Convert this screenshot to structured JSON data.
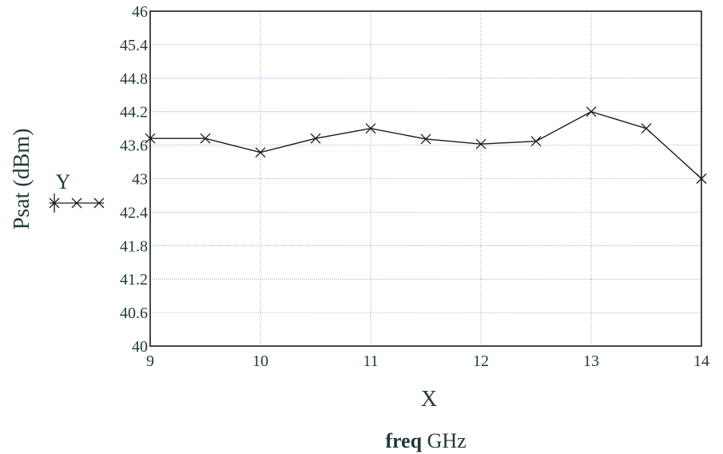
{
  "chart_data": {
    "type": "line",
    "xlabel": "X",
    "ylabel": "Psat (dBm)",
    "x_unit_label_bold": "freq",
    "x_unit_label_rest": "GHz",
    "legend_label": "Y",
    "legend_placement": "left",
    "grid": true,
    "xlim": [
      9,
      14
    ],
    "ylim": [
      40,
      46
    ],
    "x_ticks": [
      "9",
      "10",
      "11",
      "12",
      "13",
      "14"
    ],
    "y_ticks": [
      "40",
      "40.6",
      "41.2",
      "41.8",
      "42.4",
      "43",
      "43.6",
      "44.2",
      "44.8",
      "45.4",
      "46"
    ],
    "x_tick_values": [
      9,
      10,
      11,
      12,
      13,
      14
    ],
    "y_tick_values": [
      40,
      40.6,
      41.2,
      41.8,
      42.4,
      43,
      43.6,
      44.2,
      44.8,
      45.4,
      46
    ],
    "series": [
      {
        "x": [
          9,
          9.5,
          10,
          10.5,
          11,
          11.5,
          12,
          12.5,
          13,
          13.5,
          14
        ],
        "y": [
          43.72,
          43.72,
          43.47,
          43.72,
          43.9,
          43.71,
          43.62,
          43.67,
          44.2,
          43.9,
          43.0
        ]
      }
    ],
    "colors": {
      "line": "#1a1a1a",
      "text": "#1f3a3a",
      "grid": "#7f93b6",
      "frame": "#1a1a1a"
    }
  }
}
